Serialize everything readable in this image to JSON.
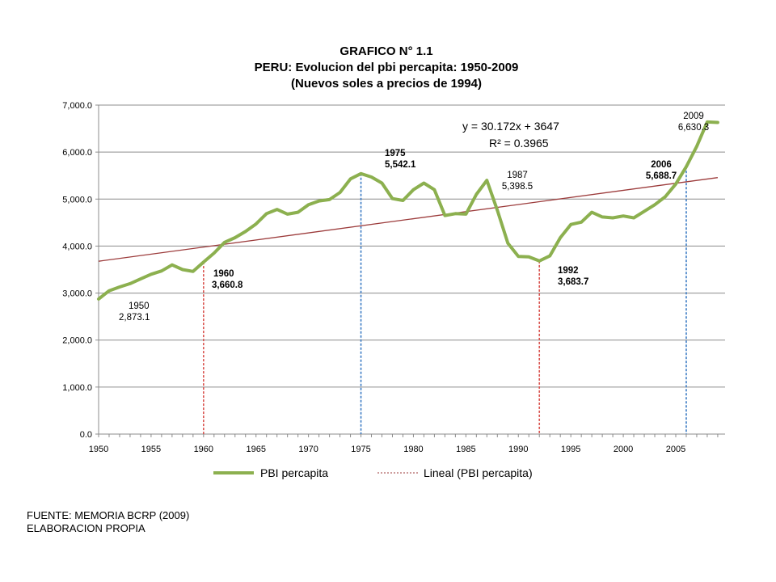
{
  "chart_data": {
    "type": "line",
    "title": "GRAFICO N° 1.1",
    "subtitle": "PERU: Evolucion del pbi percapita: 1950-2009",
    "subtitle2": "(Nuevos soles a precios de 1994)",
    "xlabel": "",
    "ylabel": "",
    "xlim": [
      1950,
      2009
    ],
    "ylim": [
      0,
      7000
    ],
    "grid": true,
    "legend_position": "bottom",
    "x_ticks": [
      "1950",
      "1955",
      "1960",
      "1965",
      "1970",
      "1975",
      "1980",
      "1985",
      "1990",
      "1995",
      "2000",
      "2005"
    ],
    "y_ticks": [
      "0.0",
      "1,000.0",
      "2,000.0",
      "3,000.0",
      "4,000.0",
      "5,000.0",
      "6,000.0",
      "7,000.0"
    ],
    "series": [
      {
        "name": "PBI percapita",
        "color": "#8cb04f",
        "x": [
          1950,
          1951,
          1952,
          1953,
          1954,
          1955,
          1956,
          1957,
          1958,
          1959,
          1960,
          1961,
          1962,
          1963,
          1964,
          1965,
          1966,
          1967,
          1968,
          1969,
          1970,
          1971,
          1972,
          1973,
          1974,
          1975,
          1976,
          1977,
          1978,
          1979,
          1980,
          1981,
          1982,
          1983,
          1984,
          1985,
          1986,
          1987,
          1988,
          1989,
          1990,
          1991,
          1992,
          1993,
          1994,
          1995,
          1996,
          1997,
          1998,
          1999,
          2000,
          2001,
          2002,
          2003,
          2004,
          2005,
          2006,
          2007,
          2008,
          2009
        ],
        "values": [
          2873.1,
          3050,
          3130,
          3200,
          3300,
          3400,
          3470,
          3600,
          3500,
          3460,
          3660.8,
          3850,
          4080,
          4180,
          4310,
          4470,
          4690,
          4780,
          4680,
          4720,
          4880,
          4960,
          4990,
          5140,
          5430,
          5542.1,
          5470,
          5340,
          5010,
          4970,
          5200,
          5340,
          5200,
          4650,
          4690,
          4680,
          5100,
          5398.5,
          4760,
          4060,
          3780,
          3770,
          3683.7,
          3790,
          4180,
          4460,
          4510,
          4720,
          4620,
          4600,
          4640,
          4600,
          4740,
          4880,
          5050,
          5320,
          5688.7,
          6120,
          6640,
          6630.3
        ]
      },
      {
        "name": "Lineal (PBI percapita)",
        "color": "#9c3b3b",
        "x": [
          1950,
          2009
        ],
        "values": [
          3677.2,
          5457.3
        ]
      }
    ],
    "trendline": {
      "equation": "y = 30.172x + 3647",
      "r_squared": "R² = 0.3965"
    },
    "annotations": [
      {
        "year": "1950",
        "value": "2,873.1",
        "bold": false,
        "color": "#000000"
      },
      {
        "year": "1960",
        "value": "3,660.8",
        "bold": true,
        "color": "#000000"
      },
      {
        "year": "1975",
        "value": "5,542.1",
        "bold": true,
        "color": "#000000"
      },
      {
        "year": "1987",
        "value": "5,398.5",
        "bold": false,
        "color": "#2fa86a"
      },
      {
        "year": "1992",
        "value": "3,683.7",
        "bold": true,
        "color": "#000000"
      },
      {
        "year": "2006",
        "value": "5,688.7",
        "bold": true,
        "color": "#000000"
      },
      {
        "year": "2009",
        "value": "6,630.3",
        "bold": false,
        "color": "#000000"
      }
    ],
    "drop_lines": [
      {
        "x": 1960,
        "value": 3660.8,
        "color": "#d9534f"
      },
      {
        "x": 1975,
        "value": 5542.1,
        "color": "#3b7bc4"
      },
      {
        "x": 1992,
        "value": 3683.7,
        "color": "#d9534f"
      },
      {
        "x": 2006,
        "value": 5688.7,
        "color": "#3b7bc4"
      }
    ]
  },
  "source": {
    "line1": "FUENTE: MEMORIA BCRP (2009)",
    "line2": "ELABORACION PROPIA"
  }
}
